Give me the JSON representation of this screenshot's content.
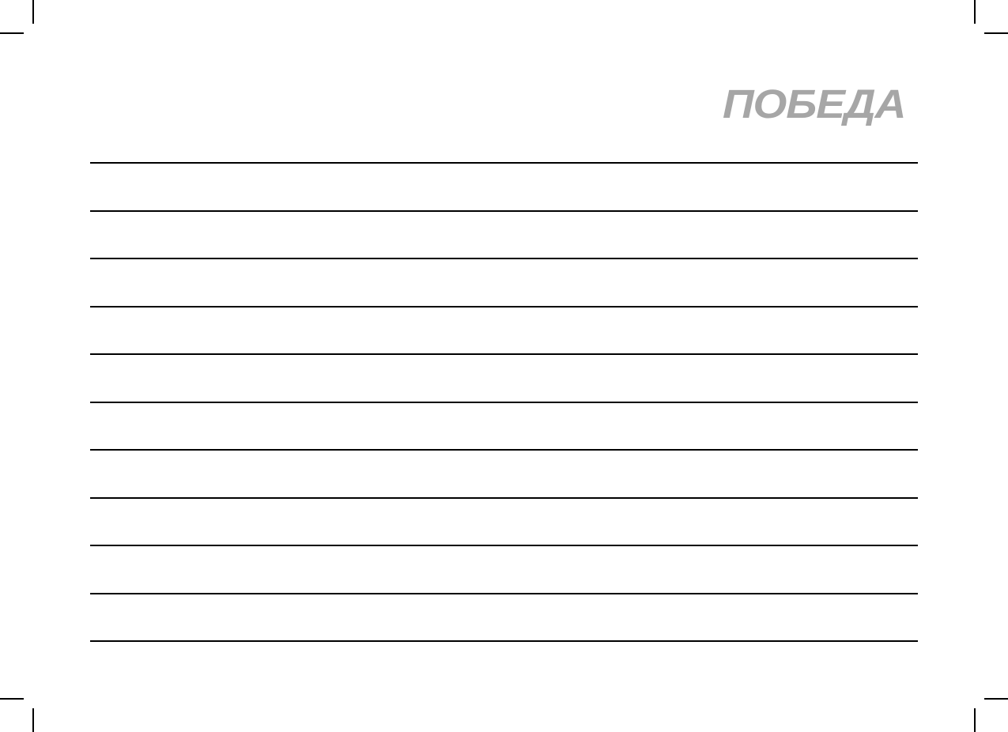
{
  "logo": {
    "text": "ПОБЕДА",
    "color": "#a6a6a6"
  },
  "notes": {
    "line_count": 11
  }
}
